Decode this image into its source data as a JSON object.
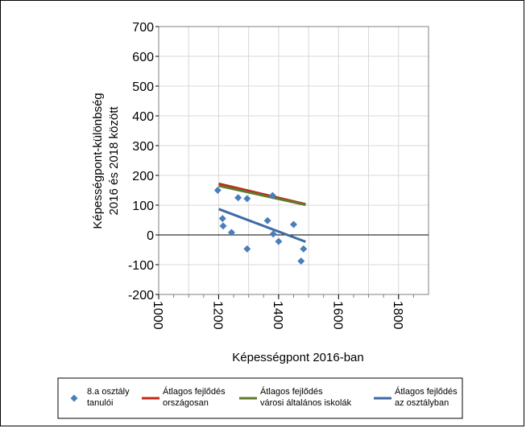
{
  "chart_data": {
    "type": "scatter",
    "title": "",
    "xlabel": "Képességpont 2016-ban",
    "ylabel_lines": [
      "Képességpont-különbség",
      "2016 és 2018 között"
    ],
    "xlim": [
      1000,
      1900
    ],
    "ylim": [
      -200,
      700
    ],
    "x_ticks": [
      1000,
      1200,
      1400,
      1600,
      1800
    ],
    "y_ticks": [
      700,
      600,
      500,
      400,
      300,
      200,
      100,
      0,
      -100,
      -200
    ],
    "grid": true,
    "legend_position": "bottom",
    "points_series": {
      "name_lines": [
        "8.a osztály",
        "tanulói"
      ],
      "color": "#4a7ebb",
      "x": [
        1197,
        1213,
        1215,
        1243,
        1265,
        1295,
        1295,
        1363,
        1380,
        1382,
        1400,
        1450,
        1475,
        1483
      ],
      "y": [
        150,
        55,
        30,
        8,
        125,
        -47,
        122,
        48,
        132,
        3,
        -22,
        35,
        -88,
        -47
      ]
    },
    "line_series": [
      {
        "name_lines": [
          "Átlagos fejlődés",
          "országosan"
        ],
        "color": "#c0281c",
        "x": [
          1200,
          1490
        ],
        "y": [
          172,
          103
        ]
      },
      {
        "name_lines": [
          "Átlagos fejlődés",
          "városi általános iskolák"
        ],
        "color": "#5e7a2c",
        "x": [
          1200,
          1490
        ],
        "y": [
          165,
          101
        ]
      },
      {
        "name_lines": [
          "Átlagos fejlődés",
          "az osztályban"
        ],
        "color": "#3f69a6",
        "x": [
          1200,
          1490
        ],
        "y": [
          87,
          -23
        ]
      }
    ]
  }
}
